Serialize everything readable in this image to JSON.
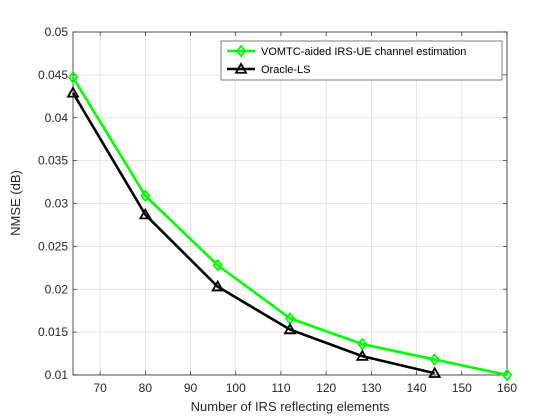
{
  "chart_data": {
    "type": "line",
    "title": "",
    "xlabel": "Number of IRS reflecting elements",
    "ylabel": "NMSE (dB)",
    "xlim": [
      64,
      160
    ],
    "ylim": [
      0.01,
      0.05
    ],
    "xticks": [
      70,
      80,
      90,
      100,
      110,
      120,
      130,
      140,
      150,
      160
    ],
    "yticks": [
      0.01,
      0.015,
      0.02,
      0.025,
      0.03,
      0.035,
      0.04,
      0.045,
      0.05
    ],
    "xtick_labels": [
      "70",
      "80",
      "90",
      "100",
      "110",
      "120",
      "130",
      "140",
      "150",
      "160"
    ],
    "ytick_labels": [
      "0.01",
      "0.015",
      "0.02",
      "0.025",
      "0.03",
      "0.035",
      "0.04",
      "0.045",
      "0.05"
    ],
    "grid": true,
    "legend_position": "top-right",
    "series": [
      {
        "name": "VOMTC-aided IRS-UE channel estimation",
        "color": "#00ff00",
        "marker": "diamond",
        "x": [
          64,
          80,
          96,
          112,
          128,
          144,
          160
        ],
        "y": [
          0.0447,
          0.0309,
          0.0228,
          0.0166,
          0.0136,
          0.0118,
          0.01
        ]
      },
      {
        "name": "Oracle-LS",
        "color": "#000000",
        "marker": "triangle",
        "x": [
          64,
          80,
          96,
          112,
          128,
          144
        ],
        "y": [
          0.0429,
          0.0287,
          0.0203,
          0.0153,
          0.0122,
          0.0102
        ]
      }
    ]
  }
}
